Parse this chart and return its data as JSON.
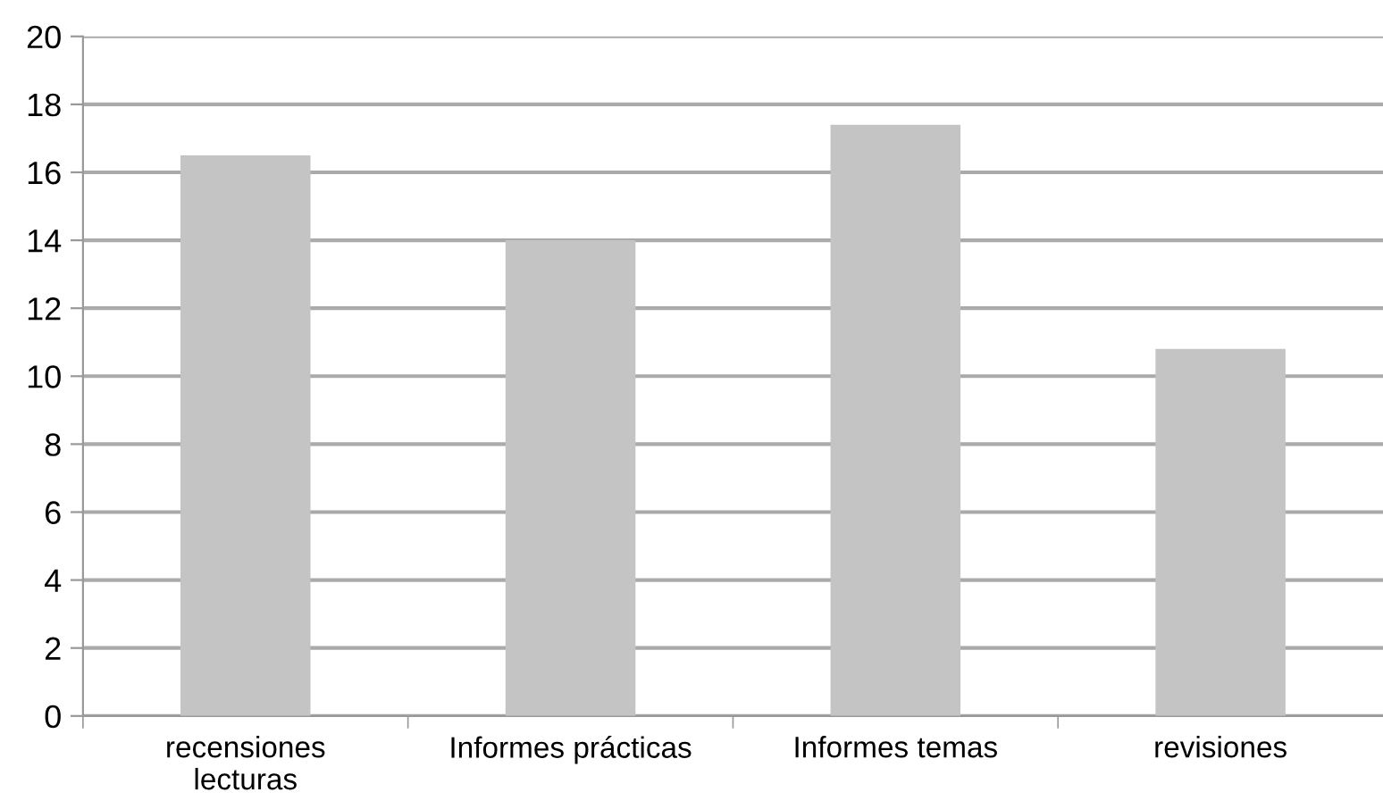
{
  "chart_data": {
    "type": "bar",
    "categories": [
      "recensiones\nlecturas",
      "Informes prácticas",
      "Informes temas",
      "revisiones"
    ],
    "values": [
      16.5,
      14.0,
      17.4,
      10.8
    ],
    "color": "#c4c4c4",
    "ylim": [
      0,
      20
    ],
    "yticks": [
      0,
      2,
      4,
      6,
      8,
      10,
      12,
      14,
      16,
      18,
      20
    ],
    "grid": "y"
  }
}
